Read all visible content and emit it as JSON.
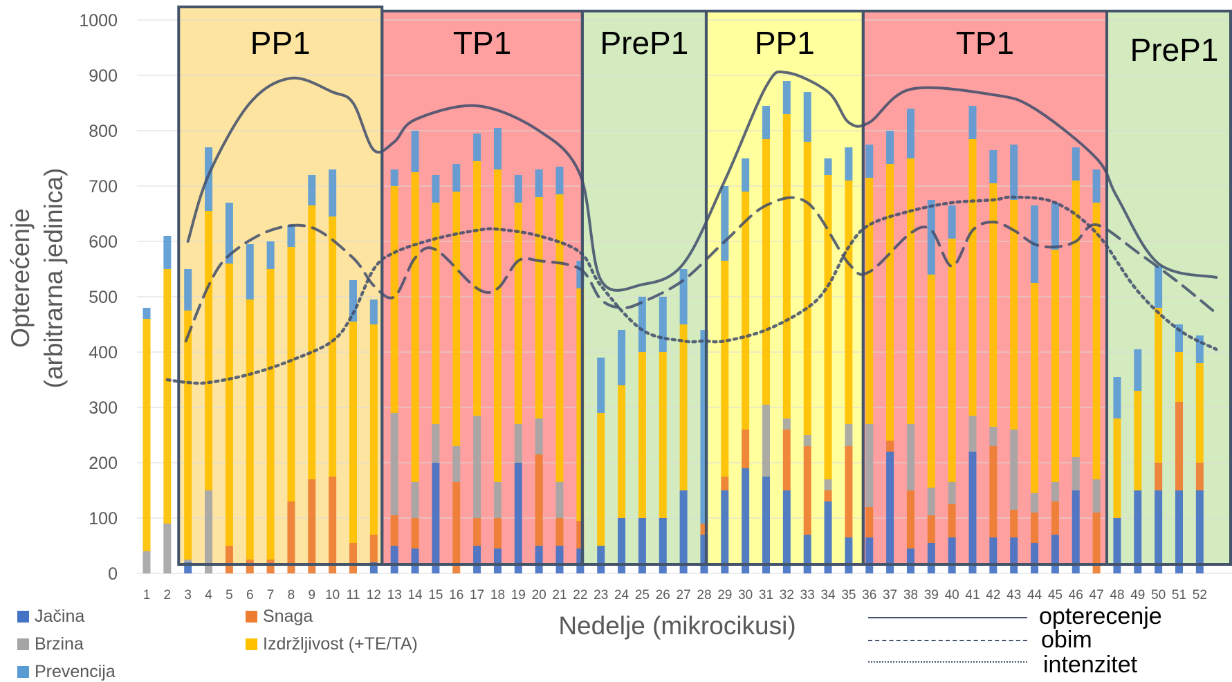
{
  "chart_data": {
    "type": "bar",
    "stacked": true,
    "xlabel": "Nedelje (mikrocikusi)",
    "ylabel_line1": "Opterećenje",
    "ylabel_line2": "(arbitrarna jedinica)",
    "ylim": [
      0,
      1000
    ],
    "yticks": [
      0,
      100,
      200,
      300,
      400,
      500,
      600,
      700,
      800,
      900,
      1000
    ],
    "grid": true,
    "categories": [
      "1",
      "2",
      "3",
      "4",
      "5",
      "6",
      "7",
      "8",
      "9",
      "10",
      "11",
      "12",
      "13",
      "14",
      "15",
      "16",
      "17",
      "18",
      "19",
      "20",
      "21",
      "22",
      "23",
      "24",
      "25",
      "26",
      "27",
      "28",
      "29",
      "30",
      "31",
      "32",
      "33",
      "34",
      "35",
      "36",
      "37",
      "38",
      "39",
      "40",
      "41",
      "42",
      "43",
      "44",
      "45",
      "46",
      "47",
      "48",
      "49",
      "50",
      "51",
      "52"
    ],
    "series": [
      {
        "name": "Jačina",
        "color": "#4472c4",
        "values": [
          0,
          0,
          20,
          0,
          0,
          0,
          0,
          0,
          0,
          0,
          0,
          20,
          50,
          45,
          200,
          0,
          50,
          45,
          200,
          50,
          50,
          45,
          50,
          100,
          100,
          100,
          150,
          70,
          150,
          190,
          175,
          150,
          70,
          130,
          65,
          65,
          220,
          45,
          55,
          65,
          220,
          65,
          65,
          55,
          70,
          150,
          0,
          100,
          150,
          150,
          150,
          150
        ]
      },
      {
        "name": "Snaga",
        "color": "#ed7d31",
        "values": [
          0,
          0,
          0,
          0,
          50,
          25,
          25,
          130,
          170,
          175,
          55,
          50,
          55,
          55,
          0,
          165,
          50,
          55,
          0,
          165,
          50,
          50,
          0,
          0,
          0,
          0,
          0,
          20,
          25,
          70,
          0,
          110,
          160,
          20,
          165,
          55,
          20,
          105,
          50,
          60,
          0,
          165,
          50,
          55,
          60,
          0,
          110,
          0,
          0,
          50,
          160,
          50
        ]
      },
      {
        "name": "Brzina",
        "color": "#a5a5a5",
        "values": [
          40,
          90,
          5,
          150,
          0,
          0,
          0,
          0,
          0,
          0,
          0,
          0,
          185,
          65,
          70,
          65,
          185,
          65,
          70,
          65,
          65,
          0,
          0,
          0,
          0,
          0,
          0,
          0,
          0,
          0,
          130,
          20,
          20,
          20,
          40,
          150,
          0,
          120,
          50,
          40,
          65,
          35,
          145,
          35,
          35,
          60,
          60,
          0,
          0,
          0,
          0,
          0
        ]
      },
      {
        "name": "Izdržljivost (+TE/TA)",
        "color": "#ffc000",
        "values": [
          420,
          460,
          450,
          505,
          510,
          470,
          525,
          460,
          495,
          470,
          400,
          380,
          410,
          560,
          400,
          460,
          460,
          565,
          400,
          400,
          520,
          420,
          240,
          240,
          300,
          300,
          300,
          0,
          390,
          430,
          480,
          550,
          530,
          550,
          440,
          445,
          500,
          480,
          385,
          440,
          500,
          440,
          415,
          380,
          420,
          500,
          500,
          180,
          180,
          280,
          90,
          180
        ]
      },
      {
        "name": "Prevencija",
        "color": "#5b9bd5",
        "values": [
          20,
          60,
          75,
          115,
          110,
          100,
          50,
          40,
          55,
          85,
          75,
          45,
          30,
          75,
          50,
          50,
          50,
          75,
          50,
          50,
          50,
          50,
          100,
          100,
          100,
          100,
          100,
          350,
          135,
          60,
          60,
          60,
          90,
          30,
          60,
          60,
          60,
          90,
          135,
          60,
          60,
          60,
          100,
          140,
          85,
          60,
          60,
          75,
          75,
          75,
          50,
          50
        ]
      }
    ],
    "lines": [
      {
        "name": "opterecenje",
        "style": "solid",
        "x": [
          3,
          4,
          6,
          8,
          10,
          11,
          12,
          13,
          14,
          17,
          20,
          22,
          23,
          25,
          27,
          29,
          31,
          32,
          34,
          35,
          36,
          38,
          42,
          44,
          47,
          48,
          50,
          52.8
        ],
        "y": [
          600,
          720,
          850,
          895,
          870,
          850,
          765,
          780,
          820,
          845,
          800,
          720,
          530,
          522,
          560,
          710,
          880,
          905,
          870,
          815,
          815,
          875,
          865,
          840,
          750,
          680,
          560,
          535
        ]
      },
      {
        "name": "obim",
        "style": "dashed",
        "x": [
          2.9,
          4,
          5,
          7,
          9,
          11,
          12,
          13,
          14,
          15,
          17,
          18,
          19,
          20,
          22,
          23,
          24,
          25,
          27,
          29,
          31,
          33,
          35,
          36,
          38,
          39,
          40,
          41,
          42,
          43,
          44,
          45,
          46,
          47,
          49,
          51,
          52.8
        ],
        "y": [
          420,
          520,
          575,
          620,
          625,
          570,
          520,
          500,
          570,
          585,
          515,
          515,
          565,
          565,
          550,
          495,
          480,
          490,
          530,
          600,
          665,
          670,
          560,
          545,
          615,
          620,
          555,
          620,
          635,
          620,
          595,
          590,
          600,
          630,
          580,
          525,
          470
        ]
      },
      {
        "name": "intenzitet",
        "style": "dotted",
        "x": [
          2,
          3,
          4,
          6,
          8,
          10,
          11,
          12,
          13,
          15,
          17,
          18,
          20,
          22,
          23,
          25,
          27,
          28,
          29,
          31,
          33,
          34,
          35,
          36,
          38,
          40,
          42,
          43,
          45,
          47,
          49,
          51,
          52.8
        ],
        "y": [
          350,
          345,
          345,
          360,
          385,
          420,
          470,
          550,
          580,
          605,
          620,
          622,
          610,
          580,
          520,
          440,
          420,
          420,
          420,
          440,
          480,
          520,
          590,
          630,
          655,
          670,
          675,
          680,
          670,
          615,
          510,
          440,
          405
        ]
      }
    ],
    "phases": [
      {
        "label": "PP1",
        "from": 2.55,
        "to": 12.4,
        "fill": "#fde5a1",
        "label_pos": "top"
      },
      {
        "label": "TP1",
        "from": 12.4,
        "to": 22.1,
        "fill": "#ffa0a0",
        "label_pos": "top"
      },
      {
        "label": "PreP1",
        "from": 22.1,
        "to": 28.1,
        "fill": "#d4ebc0",
        "label_pos": "top"
      },
      {
        "label": "PP1",
        "from": 28.1,
        "to": 35.7,
        "fill": "#ffff9e",
        "label_pos": "top"
      },
      {
        "label": "TP1",
        "from": 35.7,
        "to": 47.5,
        "fill": "#ffa0a0",
        "label_pos": "top"
      },
      {
        "label": "PreP1",
        "from": 47.5,
        "to": 53.5,
        "fill": "#d4ebc0",
        "label_pos": "top"
      }
    ],
    "legend_bars": [
      "Jačina",
      "Snaga",
      "Brzina",
      "Izdržljivost (+TE/TA)",
      "Prevencija"
    ],
    "legend_lines": [
      "opterecenje",
      "obim",
      "intenzitet"
    ],
    "legend_position": "bottom"
  },
  "colors": {
    "line_color": "#3f4c6b",
    "frame_color": "#44546a",
    "grid_color": "#d9d9d9",
    "tick_color": "#595959"
  }
}
